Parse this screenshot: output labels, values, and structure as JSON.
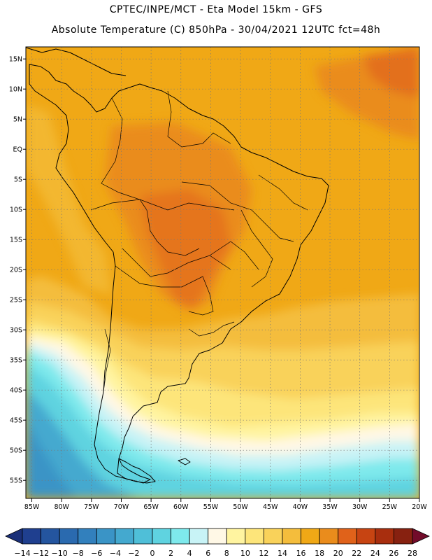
{
  "header": {
    "line1": "CPTEC/INPE/MCT -   Eta Model 15km - GFS",
    "line2": "Absolute Temperature (C) 850hPa - 30/04/2021 12UTC fct=48h"
  },
  "map": {
    "lon_range": [
      -86,
      -20
    ],
    "lat_range": [
      -58,
      17
    ],
    "lon_ticks": [
      "85W",
      "80W",
      "75W",
      "70W",
      "65W",
      "60W",
      "55W",
      "50W",
      "45W",
      "40W",
      "35W",
      "30W",
      "25W",
      "20W"
    ],
    "lat_ticks": [
      "15N",
      "10N",
      "5N",
      "EQ",
      "5S",
      "10S",
      "15S",
      "20S",
      "25S",
      "30S",
      "35S",
      "40S",
      "45S",
      "50S",
      "55S"
    ]
  },
  "colorbar": {
    "labels": [
      "-14",
      "-12",
      "-10",
      "-8",
      "-6",
      "-4",
      "-2",
      "0",
      "2",
      "4",
      "6",
      "8",
      "10",
      "12",
      "14",
      "16",
      "18",
      "20",
      "22",
      "24",
      "26",
      "28"
    ],
    "colors": [
      "#1f3f8f",
      "#24559f",
      "#2a6aaf",
      "#3280bd",
      "#3a94c6",
      "#44a9cf",
      "#4fbfd8",
      "#5fd3e0",
      "#7ee9ec",
      "#c8f3f6",
      "#fff8e6",
      "#fff4a0",
      "#fde57a",
      "#f9d25a",
      "#f4bd3c",
      "#f0a816",
      "#ea8c1c",
      "#e0621a",
      "#c74412",
      "#a82e0e",
      "#872110"
    ]
  }
}
